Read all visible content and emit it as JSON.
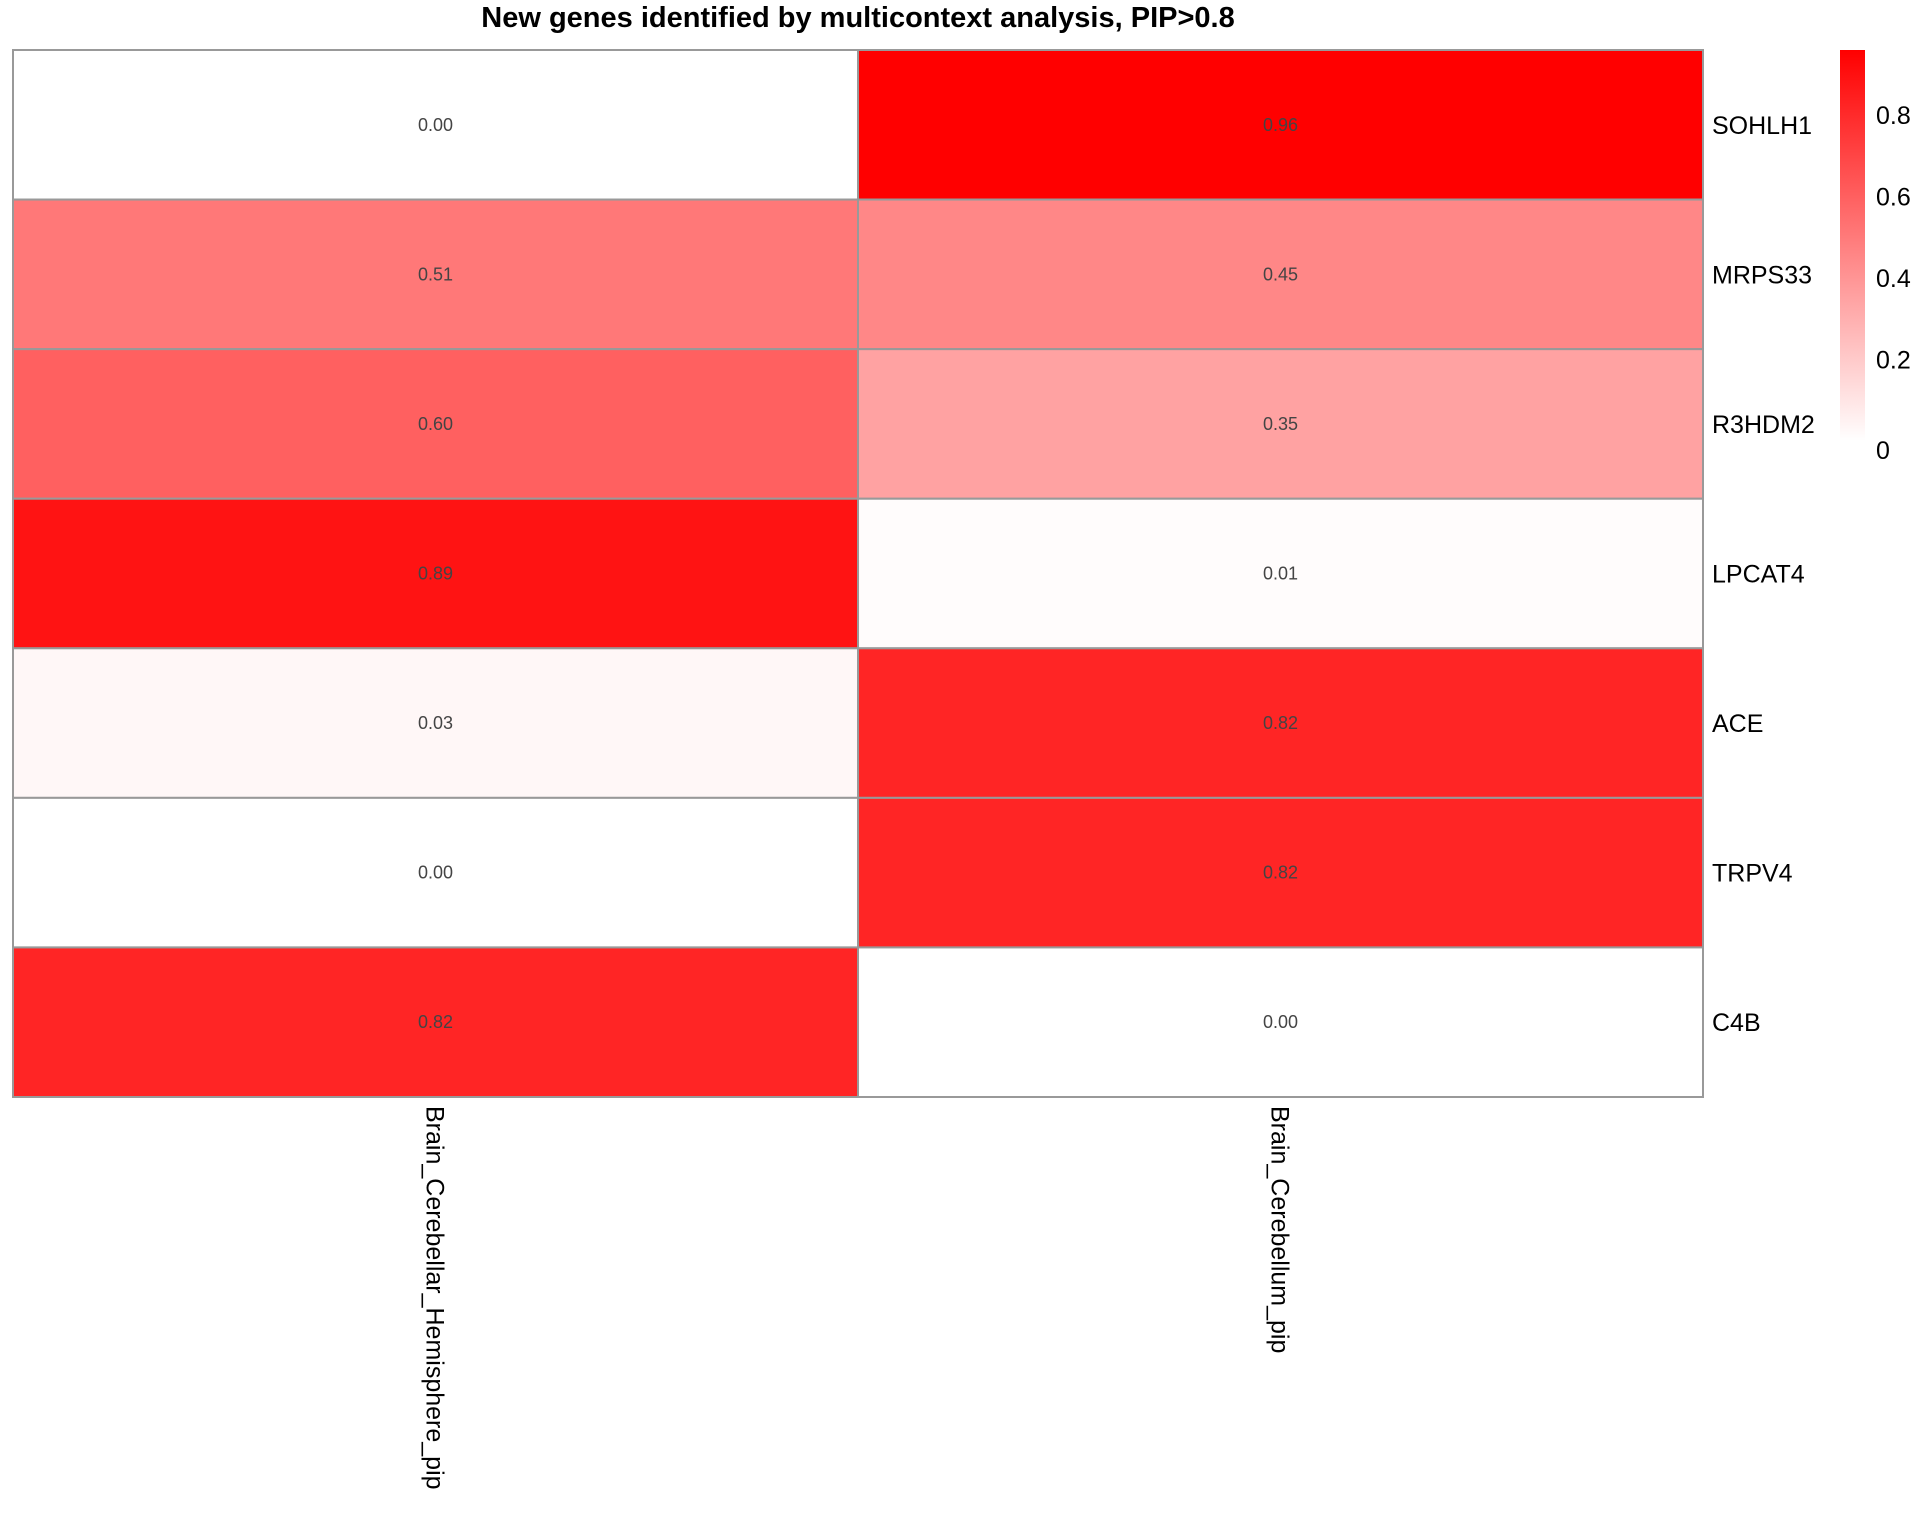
{
  "chart_data": {
    "type": "heatmap",
    "title": "New genes identified by multicontext analysis, PIP>0.8",
    "rows": [
      "SOHLH1",
      "MRPS33",
      "R3HDM2",
      "LPCAT4",
      "ACE",
      "TRPV4",
      "C4B"
    ],
    "columns": [
      "Brain_Cerebellar_Hemisphere_pip",
      "Brain_Cerebellum_pip"
    ],
    "values": [
      [
        0.0,
        0.96
      ],
      [
        0.51,
        0.45
      ],
      [
        0.6,
        0.35
      ],
      [
        0.89,
        0.01
      ],
      [
        0.03,
        0.82
      ],
      [
        0.0,
        0.82
      ],
      [
        0.82,
        0.0
      ]
    ],
    "labels": [
      [
        "0.00",
        "0.96"
      ],
      [
        "0.51",
        "0.45"
      ],
      [
        "0.60",
        "0.35"
      ],
      [
        "0.89",
        "0.01"
      ],
      [
        "0.03",
        "0.82"
      ],
      [
        "0.00",
        "0.82"
      ],
      [
        "0.82",
        "0.00"
      ]
    ],
    "colorbar": {
      "range": [
        0,
        0.96
      ],
      "ticks": [
        0,
        0.2,
        0.4,
        0.6,
        0.8
      ],
      "tick_labels": [
        "0",
        "0.2",
        "0.4",
        "0.6",
        "0.8"
      ],
      "low_color": "#FFFFFF",
      "high_color": "#FF0000"
    },
    "cell_border_color": "#999999",
    "legend": "right"
  }
}
